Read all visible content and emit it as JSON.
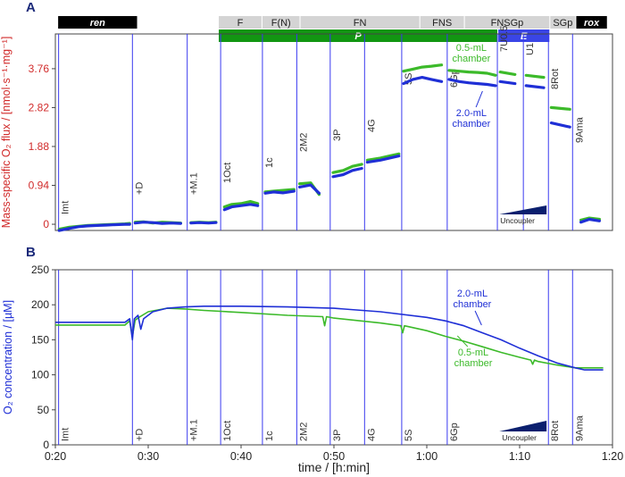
{
  "panels": {
    "a": "A",
    "b": "B"
  },
  "colors": {
    "blue": "#1f2fd6",
    "green": "#3cba2a",
    "red": "#d12b2b",
    "dark_blue": "#1b2a7a",
    "ren_bar": "#000000",
    "state_bar": "#d4d4d4",
    "p_bar": "#129612",
    "e_bar": "#3a45e6",
    "rox_bar": "#000000",
    "wedge": "#0b1f6e",
    "line": "#3a3af0"
  },
  "protocol": {
    "top_row": [
      {
        "label": "ren",
        "start": 20.3,
        "end": 28.8,
        "style": "black"
      },
      {
        "label": "F",
        "start": 37.6,
        "end": 42.2,
        "style": "grey"
      },
      {
        "label": "F(N)",
        "start": 42.3,
        "end": 46.3,
        "style": "grey"
      },
      {
        "label": "FN",
        "start": 46.4,
        "end": 59.2,
        "style": "grey"
      },
      {
        "label": "FNS",
        "start": 59.3,
        "end": 64.0,
        "style": "grey"
      },
      {
        "label": "FNSGp",
        "start": 64.1,
        "end": 73.2,
        "style": "grey"
      },
      {
        "label": "SGp",
        "start": 73.3,
        "end": 76.0,
        "style": "grey"
      },
      {
        "label": "rox",
        "start": 76.1,
        "end": 79.4,
        "style": "black"
      }
    ],
    "second_row": [
      {
        "label": "P",
        "start": 37.6,
        "end": 67.6,
        "style": "green"
      },
      {
        "label": "E",
        "start": 67.7,
        "end": 73.2,
        "style": "blue"
      }
    ]
  },
  "events": [
    {
      "label": "Imt",
      "t": 20.35
    },
    {
      "label": "+D",
      "t": 28.3
    },
    {
      "label": "+M.1",
      "t": 34.2
    },
    {
      "label": "1Oct",
      "t": 37.8
    },
    {
      "label": "1c",
      "t": 42.3
    },
    {
      "label": "2M2",
      "t": 46.0
    },
    {
      "label": "3P",
      "t": 49.6
    },
    {
      "label": "4G",
      "t": 53.3
    },
    {
      "label": "5S",
      "t": 57.3
    },
    {
      "label": "6Gp",
      "t": 62.2
    },
    {
      "label": "7U0.5",
      "t": 67.6
    },
    {
      "label": "U1",
      "t": 70.4
    },
    {
      "label": "8Rot",
      "t": 73.1
    },
    {
      "label": "9Ama",
      "t": 75.7
    }
  ],
  "panel_b_events": [
    "Imt",
    "+D",
    "+M.1",
    "1Oct",
    "1c",
    "2M2",
    "3P",
    "4G",
    "5S",
    "6Gp",
    "8Rot",
    "9Ama"
  ],
  "uncoupler_label": "Uncoupler",
  "chart_data": [
    {
      "type": "line",
      "title": "",
      "xlabel": "",
      "ylabel": "Mass-specific O₂ flux / [nmol·s⁻¹·mg⁻¹]",
      "ylim": [
        -0.15,
        4.6
      ],
      "yticks": [
        0,
        0.94,
        1.88,
        2.82,
        3.76
      ],
      "xlim": [
        20.0,
        80.0
      ],
      "annotations": [
        {
          "text": "0.5-mL chamber",
          "color": "green"
        },
        {
          "text": "2.0-mL chamber",
          "color": "blue"
        }
      ],
      "series": [
        {
          "name": "0.5-mL chamber",
          "color": "green",
          "segments": [
            {
              "t": [
                20.4,
                21.5,
                22.5,
                23.5,
                24.5,
                25.5,
                26.5,
                27.5,
                28.0
              ],
              "v": [
                -0.12,
                -0.07,
                -0.05,
                -0.03,
                -0.02,
                -0.01,
                0.0,
                0.01,
                0.02
              ]
            },
            {
              "t": [
                28.6,
                29.5,
                30.5,
                31.5,
                32.5,
                33.5
              ],
              "v": [
                0.05,
                0.06,
                0.03,
                0.05,
                0.04,
                0.03
              ]
            },
            {
              "t": [
                34.6,
                35.5,
                36.5,
                37.3
              ],
              "v": [
                0.04,
                0.05,
                0.04,
                0.05
              ]
            },
            {
              "t": [
                38.2,
                39.0,
                40.0,
                41.0,
                41.8
              ],
              "v": [
                0.42,
                0.48,
                0.5,
                0.55,
                0.5
              ]
            },
            {
              "t": [
                42.6,
                43.5,
                44.5,
                45.7
              ],
              "v": [
                0.78,
                0.8,
                0.82,
                0.84
              ]
            },
            {
              "t": [
                46.3,
                47.5,
                48.4
              ],
              "v": [
                0.98,
                1.0,
                0.72
              ]
            },
            {
              "t": [
                49.9,
                51.0,
                52.0,
                53.0
              ],
              "v": [
                1.25,
                1.3,
                1.4,
                1.45
              ]
            },
            {
              "t": [
                53.6,
                55.0,
                56.0,
                57.0
              ],
              "v": [
                1.55,
                1.6,
                1.65,
                1.7
              ]
            },
            {
              "t": [
                57.5,
                58.5,
                59.5,
                60.5,
                61.6
              ],
              "v": [
                3.7,
                3.75,
                3.8,
                3.82,
                3.85
              ]
            },
            {
              "t": [
                62.4,
                63.5,
                64.5,
                65.5,
                66.5,
                67.4
              ],
              "v": [
                3.72,
                3.7,
                3.68,
                3.67,
                3.65,
                3.6
              ]
            },
            {
              "t": [
                67.9,
                69.5
              ],
              "v": [
                3.68,
                3.62
              ]
            },
            {
              "t": [
                70.7,
                72.6
              ],
              "v": [
                3.6,
                3.55
              ]
            },
            {
              "t": [
                73.4,
                75.4
              ],
              "v": [
                2.82,
                2.78
              ]
            },
            {
              "t": [
                76.6,
                77.5,
                78.6
              ],
              "v": [
                0.1,
                0.15,
                0.12
              ]
            }
          ]
        },
        {
          "name": "2.0-mL chamber",
          "color": "blue",
          "segments": [
            {
              "t": [
                20.4,
                21.5,
                22.5,
                23.5,
                24.5,
                25.5,
                26.5,
                27.5,
                28.0
              ],
              "v": [
                -0.15,
                -0.1,
                -0.06,
                -0.04,
                -0.03,
                -0.02,
                -0.01,
                0.0,
                0.0
              ]
            },
            {
              "t": [
                28.6,
                29.5,
                30.5,
                31.5,
                32.5,
                33.5
              ],
              "v": [
                0.03,
                0.05,
                0.04,
                0.02,
                0.03,
                0.02
              ]
            },
            {
              "t": [
                34.6,
                35.5,
                36.5,
                37.3
              ],
              "v": [
                0.03,
                0.04,
                0.03,
                0.04
              ]
            },
            {
              "t": [
                38.2,
                39.0,
                40.0,
                41.0,
                41.8
              ],
              "v": [
                0.35,
                0.42,
                0.45,
                0.48,
                0.45
              ]
            },
            {
              "t": [
                42.6,
                43.5,
                44.5,
                45.7
              ],
              "v": [
                0.75,
                0.78,
                0.76,
                0.8
              ]
            },
            {
              "t": [
                46.3,
                47.5,
                48.4
              ],
              "v": [
                0.9,
                0.95,
                0.75
              ]
            },
            {
              "t": [
                49.9,
                51.0,
                52.0,
                53.0
              ],
              "v": [
                1.15,
                1.2,
                1.3,
                1.35
              ]
            },
            {
              "t": [
                53.6,
                55.0,
                56.0,
                57.0
              ],
              "v": [
                1.5,
                1.55,
                1.6,
                1.65
              ]
            },
            {
              "t": [
                57.5,
                58.5,
                59.5,
                60.5,
                61.6
              ],
              "v": [
                3.4,
                3.5,
                3.55,
                3.5,
                3.45
              ]
            },
            {
              "t": [
                62.4,
                63.5,
                64.5,
                65.5,
                66.5,
                67.4
              ],
              "v": [
                3.5,
                3.45,
                3.42,
                3.4,
                3.38,
                3.35
              ]
            },
            {
              "t": [
                67.9,
                69.5
              ],
              "v": [
                3.45,
                3.4
              ]
            },
            {
              "t": [
                70.7,
                72.6
              ],
              "v": [
                3.35,
                3.3
              ]
            },
            {
              "t": [
                73.4,
                75.4
              ],
              "v": [
                2.45,
                2.35
              ]
            },
            {
              "t": [
                76.6,
                77.5,
                78.6
              ],
              "v": [
                0.05,
                0.12,
                0.08
              ]
            }
          ]
        }
      ]
    },
    {
      "type": "line",
      "title": "",
      "xlabel": "time / [h:min]",
      "ylabel": "O₂ concentration / [µM]",
      "ylim": [
        0,
        250
      ],
      "yticks": [
        0,
        50,
        100,
        150,
        200,
        250
      ],
      "xlim": [
        20.0,
        80.0
      ],
      "xticks": [
        20,
        30,
        40,
        50,
        60,
        70,
        80
      ],
      "xtick_labels": [
        "0:20",
        "0:30",
        "0:40",
        "0:50",
        "1:00",
        "1:10",
        "1:20"
      ],
      "annotations": [
        {
          "text": "2.0-mL chamber",
          "color": "blue"
        },
        {
          "text": "0.5-mL chamber",
          "color": "green"
        }
      ],
      "series": [
        {
          "name": "2.0-mL chamber",
          "color": "blue",
          "t": [
            20.0,
            27.5,
            28.0,
            28.3,
            28.5,
            28.9,
            29.2,
            29.5,
            30.5,
            32.0,
            34.0,
            36.0,
            40.0,
            45.0,
            50.0,
            55.0,
            60.0,
            62.0,
            64.0,
            66.0,
            68.0,
            70.0,
            72.0,
            74.0,
            76.0,
            77.0,
            79.0
          ],
          "v": [
            175,
            175,
            180,
            150,
            180,
            185,
            165,
            180,
            190,
            195,
            197,
            198,
            198,
            197,
            195,
            190,
            182,
            177,
            170,
            160,
            150,
            138,
            127,
            117,
            110,
            107,
            107
          ]
        },
        {
          "name": "0.5-mL chamber",
          "color": "green",
          "t": [
            20.0,
            27.5,
            28.0,
            28.3,
            28.6,
            29.0,
            30.0,
            32.0,
            34.0,
            36.0,
            40.0,
            45.0,
            48.8,
            49.0,
            49.2,
            50.0,
            55.0,
            57.2,
            57.4,
            57.6,
            60.0,
            62.0,
            64.0,
            66.0,
            68.0,
            70.0,
            71.2,
            71.4,
            71.6,
            72.0,
            74.0,
            76.0,
            77.0,
            79.0
          ],
          "v": [
            171,
            171,
            177,
            155,
            178,
            182,
            190,
            195,
            194,
            192,
            189,
            185,
            183,
            170,
            183,
            181,
            174,
            170,
            160,
            170,
            163,
            155,
            148,
            140,
            132,
            125,
            121,
            115,
            121,
            119,
            114,
            110,
            110,
            110
          ]
        }
      ]
    }
  ]
}
